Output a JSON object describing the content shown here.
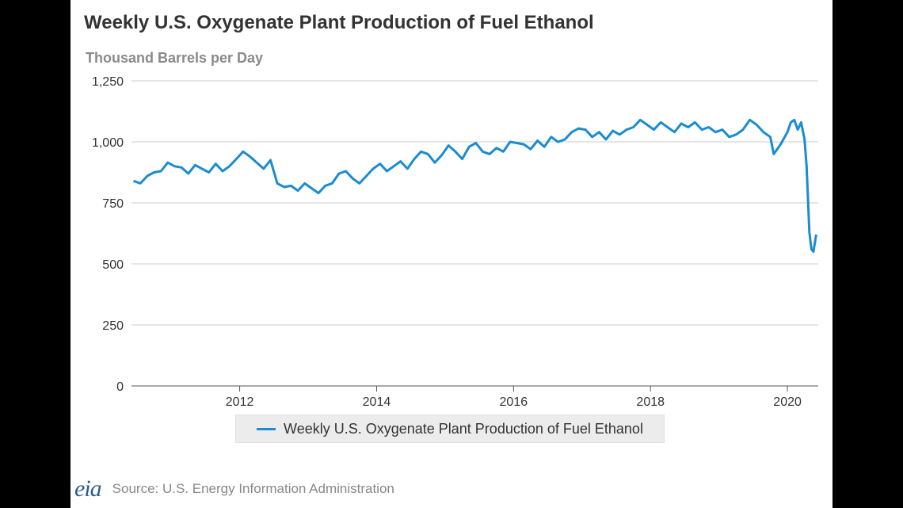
{
  "colors": {
    "series": "#1a8ccf",
    "grid": "#cccccc",
    "logo": "#2b5d8c"
  },
  "chart_data": {
    "type": "line",
    "title": "Weekly U.S. Oxygenate Plant Production of Fuel Ethanol",
    "subtitle": "Thousand Barrels per Day",
    "xlabel": "",
    "ylabel": "",
    "ylim": [
      0,
      1250
    ],
    "xlim": [
      2010.42,
      2020.45
    ],
    "yticks": [
      "0",
      "250",
      "500",
      "750",
      "1,000",
      "1,250"
    ],
    "xticks": [
      "2012",
      "2014",
      "2016",
      "2018",
      "2020"
    ],
    "grid": true,
    "legend": "bottom",
    "series": [
      {
        "name": "Weekly U.S. Oxygenate Plant Production of Fuel Ethanol",
        "x": [
          2010.45,
          2010.55,
          2010.65,
          2010.75,
          2010.85,
          2010.95,
          2011.05,
          2011.15,
          2011.25,
          2011.35,
          2011.45,
          2011.55,
          2011.65,
          2011.75,
          2011.85,
          2011.95,
          2012.05,
          2012.15,
          2012.25,
          2012.35,
          2012.45,
          2012.55,
          2012.65,
          2012.75,
          2012.85,
          2012.95,
          2013.05,
          2013.15,
          2013.25,
          2013.35,
          2013.45,
          2013.55,
          2013.65,
          2013.75,
          2013.85,
          2013.95,
          2014.05,
          2014.15,
          2014.25,
          2014.35,
          2014.45,
          2014.55,
          2014.65,
          2014.75,
          2014.85,
          2014.95,
          2015.05,
          2015.15,
          2015.25,
          2015.35,
          2015.45,
          2015.55,
          2015.65,
          2015.75,
          2015.85,
          2015.95,
          2016.05,
          2016.15,
          2016.25,
          2016.35,
          2016.45,
          2016.55,
          2016.65,
          2016.75,
          2016.85,
          2016.95,
          2017.05,
          2017.15,
          2017.25,
          2017.35,
          2017.45,
          2017.55,
          2017.65,
          2017.75,
          2017.85,
          2017.95,
          2018.05,
          2018.15,
          2018.25,
          2018.35,
          2018.45,
          2018.55,
          2018.65,
          2018.75,
          2018.85,
          2018.95,
          2019.05,
          2019.15,
          2019.25,
          2019.35,
          2019.45,
          2019.55,
          2019.65,
          2019.75,
          2019.8,
          2019.9,
          2020.0,
          2020.05,
          2020.1,
          2020.15,
          2020.2,
          2020.25,
          2020.28,
          2020.32,
          2020.35,
          2020.38,
          2020.42
        ],
        "y": [
          840,
          830,
          860,
          875,
          880,
          915,
          900,
          895,
          870,
          905,
          890,
          875,
          910,
          880,
          900,
          930,
          960,
          940,
          915,
          890,
          925,
          830,
          815,
          820,
          800,
          830,
          810,
          790,
          820,
          830,
          870,
          880,
          850,
          830,
          860,
          890,
          910,
          880,
          900,
          920,
          890,
          930,
          960,
          950,
          915,
          945,
          985,
          960,
          930,
          980,
          995,
          960,
          950,
          975,
          960,
          1000,
          995,
          990,
          970,
          1005,
          980,
          1020,
          1000,
          1010,
          1040,
          1055,
          1050,
          1020,
          1040,
          1010,
          1045,
          1030,
          1050,
          1060,
          1090,
          1070,
          1050,
          1080,
          1060,
          1040,
          1075,
          1060,
          1080,
          1050,
          1060,
          1040,
          1050,
          1020,
          1030,
          1050,
          1090,
          1070,
          1040,
          1020,
          950,
          990,
          1040,
          1080,
          1090,
          1050,
          1080,
          1010,
          900,
          630,
          560,
          550,
          620
        ]
      }
    ]
  },
  "footer": {
    "logo": "eia",
    "source": "Source: U.S. Energy Information Administration"
  }
}
